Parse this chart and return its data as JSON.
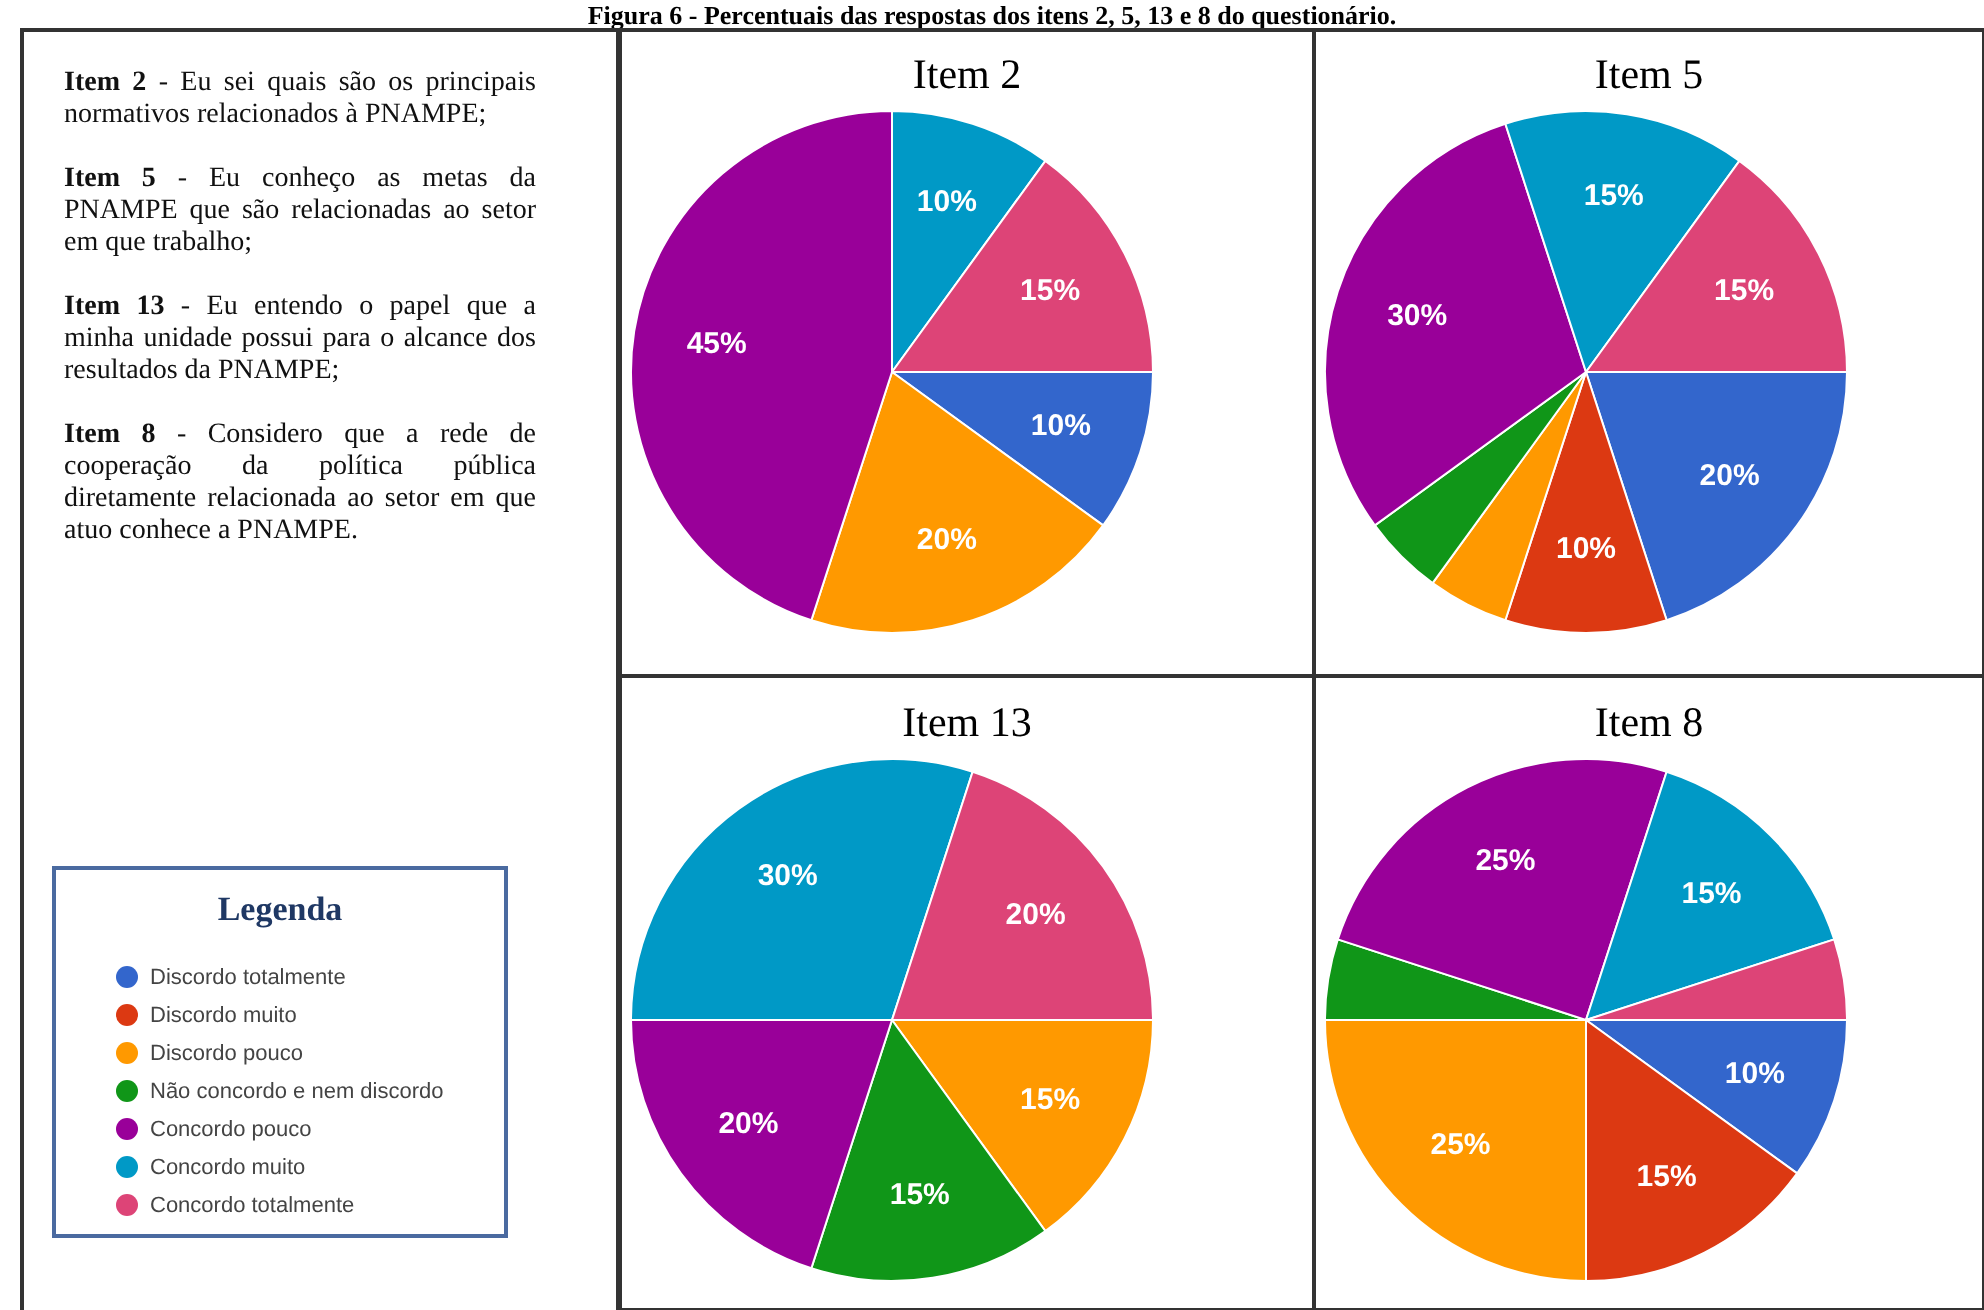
{
  "chart_data": [
    {
      "type": "other",
      "title": "Figura 6 - Percentuais das respostas dos itens 2, 5, 13 e 8 do questionário.",
      "annotations": [
        "Item 2 - Eu sei quais são os principais normativos relacionados à PNAMPE;",
        "Item 5 - Eu conheço as metas da PNAMPE que são relacionadas ao setor em que trabalho;",
        "Item 13 - Eu entendo o papel que a minha unidade possui para o alcance dos resultados da PNAMPE;",
        "Item 8 - Considero que a rede de cooperação da política pública diretamente relacionada ao setor em que atuo conhece a PNAMPE."
      ]
    },
    {
      "type": "pie",
      "title": "Item 2",
      "legend": "left",
      "legend_title": "Legenda",
      "categories": [
        "Discordo totalmente",
        "Discordo muito",
        "Discordo pouco",
        "Não concordo e nem discordo",
        "Concordo pouco",
        "Concordo muito",
        "Concordo totalmente"
      ],
      "colors": [
        "#3366cc",
        "#dc3912",
        "#ff9900",
        "#109618",
        "#990099",
        "#0099c6",
        "#dd4477"
      ],
      "values": [
        10,
        0,
        20,
        0,
        45,
        10,
        15
      ],
      "value_labels": [
        "10%",
        null,
        "20%",
        null,
        "45%",
        "10%",
        "15%"
      ]
    },
    {
      "type": "pie",
      "title": "Item 5",
      "categories": [
        null,
        null,
        null,
        null,
        null,
        null,
        null
      ],
      "colors": [
        "#3366cc",
        "#dc3912",
        "#ff9900",
        "#109618",
        "#990099",
        "#0099c6",
        "#dd4477"
      ],
      "values": [
        20,
        10,
        5,
        5,
        30,
        15,
        15
      ],
      "value_labels": [
        "20%",
        "10%",
        null,
        null,
        "30%",
        "15%",
        "15%"
      ]
    },
    {
      "type": "pie",
      "title": "Item 13",
      "categories": [
        null,
        null,
        null,
        null,
        null,
        null,
        null
      ],
      "colors": [
        "#3366cc",
        "#dc3912",
        "#ff9900",
        "#109618",
        "#990099",
        "#0099c6",
        "#dd4477"
      ],
      "values": [
        0,
        0,
        15,
        15,
        20,
        30,
        20
      ],
      "value_labels": [
        null,
        null,
        "15%",
        "15%",
        "20%",
        "30%",
        "20%"
      ]
    },
    {
      "type": "pie",
      "title": "Item 8",
      "categories": [
        null,
        null,
        null,
        null,
        null,
        null,
        null
      ],
      "colors": [
        "#3366cc",
        "#dc3912",
        "#ff9900",
        "#109618",
        "#990099",
        "#0099c6",
        "#dd4477"
      ],
      "values": [
        10,
        15,
        25,
        5,
        25,
        15,
        5
      ],
      "value_labels": [
        "10%",
        "15%",
        "25%",
        null,
        "25%",
        "15%",
        null
      ]
    }
  ]
}
